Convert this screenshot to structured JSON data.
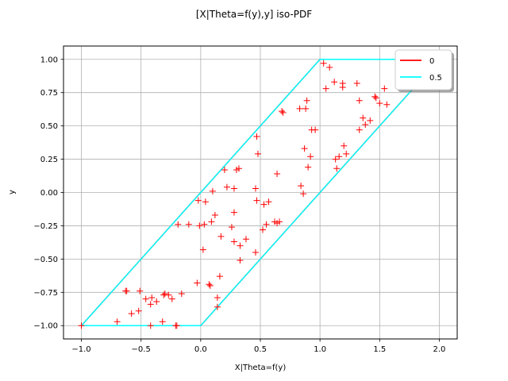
{
  "chart_data": {
    "type": "scatter",
    "title": "[X|Theta=f(y),y] iso-PDF",
    "xlabel": "X|Theta=f(y)",
    "ylabel": "y",
    "xlim": [
      -1.15,
      2.15
    ],
    "ylim": [
      -1.1,
      1.1
    ],
    "x_ticks": [
      -1.0,
      -0.5,
      0.0,
      0.5,
      1.0,
      1.5,
      2.0
    ],
    "x_tick_labels": [
      "−1.0",
      "−0.5",
      "0.0",
      "0.5",
      "1.0",
      "1.5",
      "2.0"
    ],
    "y_ticks": [
      -1.0,
      -0.75,
      -0.5,
      -0.25,
      0.0,
      0.25,
      0.5,
      0.75,
      1.0
    ],
    "y_tick_labels": [
      "−1.00",
      "−0.75",
      "−0.50",
      "−0.25",
      "0.00",
      "0.25",
      "0.50",
      "0.75",
      "1.00"
    ],
    "grid": true,
    "legend_position": "top-right",
    "series": [
      {
        "name": "0",
        "kind": "line",
        "color": "#ff0000",
        "points": [
          [
            -1.0,
            -1.0
          ],
          [
            0.0,
            -1.0
          ],
          [
            2.0,
            1.0
          ],
          [
            1.0,
            1.0
          ],
          [
            -1.0,
            -1.0
          ]
        ]
      },
      {
        "name": "0.5",
        "kind": "line",
        "color": "#00ffff",
        "points": [
          [
            -1.0,
            -1.0
          ],
          [
            0.0,
            -1.0
          ],
          [
            2.0,
            1.0
          ],
          [
            1.0,
            1.0
          ],
          [
            -1.0,
            -1.0
          ]
        ]
      }
    ],
    "scatter": {
      "color": "#ff0000",
      "marker": "plus",
      "points": [
        [
          -1.0,
          -1.0
        ],
        [
          -0.7,
          -0.97
        ],
        [
          -0.52,
          -0.89
        ],
        [
          -0.58,
          -0.91
        ],
        [
          -0.42,
          -1.0
        ],
        [
          -0.32,
          -0.97
        ],
        [
          -0.21,
          -1.0
        ],
        [
          -0.2,
          -1.0
        ],
        [
          -0.63,
          -0.74
        ],
        [
          -0.62,
          -0.74
        ],
        [
          -0.51,
          -0.74
        ],
        [
          -0.46,
          -0.8
        ],
        [
          -0.42,
          -0.84
        ],
        [
          -0.41,
          -0.79
        ],
        [
          -0.37,
          -0.82
        ],
        [
          -0.31,
          -0.77
        ],
        [
          -0.3,
          -0.76
        ],
        [
          -0.27,
          -0.77
        ],
        [
          -0.24,
          -0.8
        ],
        [
          -0.16,
          -0.76
        ],
        [
          -0.03,
          -0.68
        ],
        [
          0.07,
          -0.69
        ],
        [
          0.08,
          -0.7
        ],
        [
          0.16,
          -0.63
        ],
        [
          0.14,
          -0.79
        ],
        [
          0.14,
          -0.86
        ],
        [
          -0.19,
          -0.24
        ],
        [
          -0.1,
          -0.24
        ],
        [
          -0.02,
          -0.06
        ],
        [
          -0.01,
          -0.25
        ],
        [
          0.03,
          -0.24
        ],
        [
          0.04,
          -0.07
        ],
        [
          0.02,
          -0.43
        ],
        [
          0.09,
          -0.22
        ],
        [
          0.12,
          -0.17
        ],
        [
          0.17,
          -0.33
        ],
        [
          0.1,
          0.01
        ],
        [
          0.22,
          0.04
        ],
        [
          0.2,
          0.17
        ],
        [
          0.26,
          -0.26
        ],
        [
          0.28,
          -0.15
        ],
        [
          0.28,
          -0.37
        ],
        [
          0.33,
          -0.4
        ],
        [
          0.33,
          -0.51
        ],
        [
          0.38,
          -0.35
        ],
        [
          0.28,
          0.03
        ],
        [
          0.3,
          0.17
        ],
        [
          0.32,
          0.18
        ],
        [
          0.47,
          -0.06
        ],
        [
          0.46,
          -0.45
        ],
        [
          0.46,
          0.03
        ],
        [
          0.47,
          0.42
        ],
        [
          0.48,
          0.29
        ],
        [
          0.52,
          -0.28
        ],
        [
          0.53,
          -0.09
        ],
        [
          0.55,
          -0.24
        ],
        [
          0.57,
          -0.07
        ],
        [
          0.62,
          -0.22
        ],
        [
          0.64,
          -0.23
        ],
        [
          0.66,
          -0.22
        ],
        [
          0.64,
          0.14
        ],
        [
          0.68,
          0.61
        ],
        [
          0.69,
          0.6
        ],
        [
          0.83,
          0.63
        ],
        [
          0.84,
          0.05
        ],
        [
          0.86,
          -0.01
        ],
        [
          0.87,
          0.33
        ],
        [
          0.88,
          0.63
        ],
        [
          0.89,
          0.69
        ],
        [
          0.9,
          0.19
        ],
        [
          0.92,
          0.27
        ],
        [
          0.93,
          0.47
        ],
        [
          0.96,
          0.47
        ],
        [
          1.03,
          0.97
        ],
        [
          1.05,
          0.78
        ],
        [
          1.08,
          0.94
        ],
        [
          1.12,
          0.83
        ],
        [
          1.13,
          0.25
        ],
        [
          1.14,
          0.18
        ],
        [
          1.16,
          0.27
        ],
        [
          1.19,
          0.82
        ],
        [
          1.19,
          0.79
        ],
        [
          1.2,
          0.35
        ],
        [
          1.22,
          0.29
        ],
        [
          1.31,
          0.82
        ],
        [
          1.33,
          0.47
        ],
        [
          1.33,
          0.69
        ],
        [
          1.36,
          0.56
        ],
        [
          1.38,
          0.51
        ],
        [
          1.42,
          0.54
        ],
        [
          1.46,
          0.72
        ],
        [
          1.47,
          0.71
        ],
        [
          1.5,
          0.67
        ],
        [
          1.54,
          0.78
        ],
        [
          1.56,
          0.66
        ]
      ]
    }
  }
}
